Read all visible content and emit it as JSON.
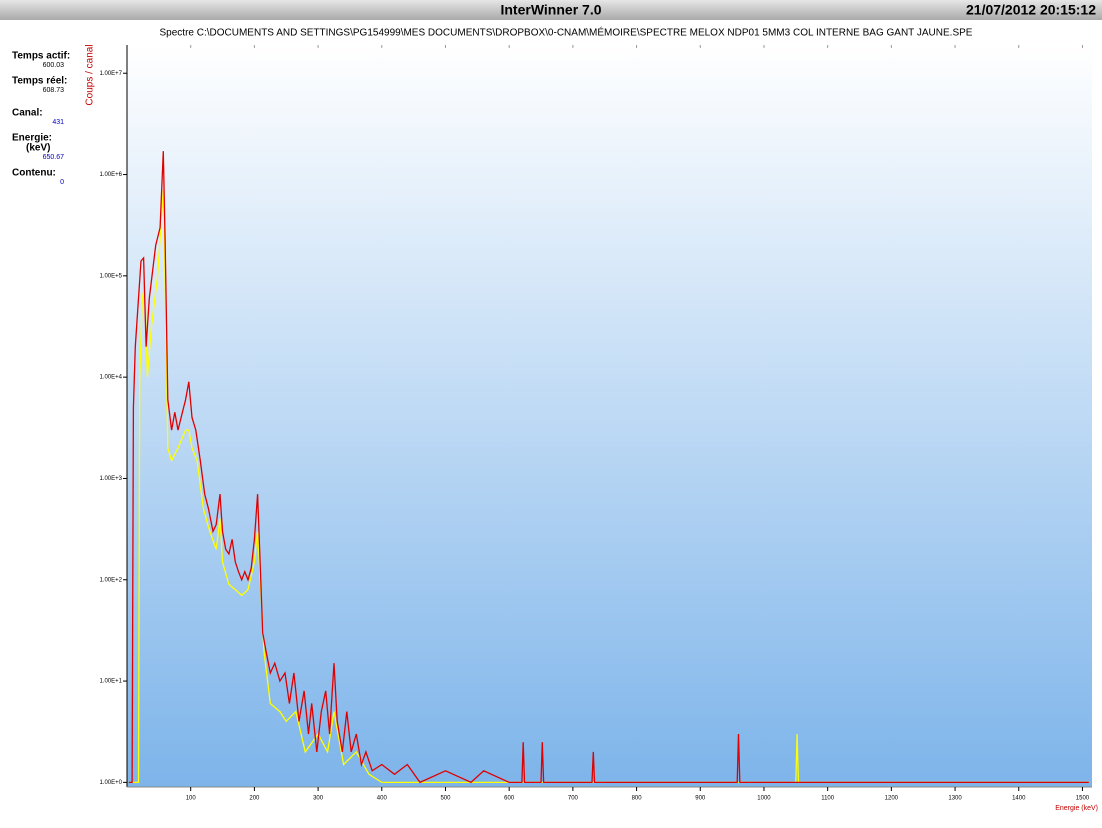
{
  "window_title": "InterWinner 7.0",
  "timestamp": "21/07/2012 20:15:12",
  "info": [
    {
      "label": "Temps actif:",
      "value": 600.03
    },
    {
      "label": "Temps réel:",
      "value": 608.73
    },
    {
      "label": "Canal:",
      "value": 431
    },
    {
      "label": "Energie:",
      "unit": "(keV)",
      "value": 650.67
    },
    {
      "label": "Contenu:",
      "value": 0
    }
  ],
  "chart_data": {
    "type": "line",
    "title": "Spectre C:\\DOCUMENTS AND SETTINGS\\PG154999\\MES DOCUMENTS\\DROPBOX\\0-CNAM\\MÉMOIRE\\SPECTRE MELOX NDP01 5MM3 COL INTERNE BAG GANT JAUNE.SPE",
    "x_label": "Energie (keV)",
    "y_label": "Coups / canal",
    "log_y": true,
    "xlim": [
      0,
      1515
    ],
    "ylim": [
      0.9,
      19000000
    ],
    "xticks": [
      100,
      200,
      300,
      400,
      500,
      600,
      700,
      800,
      900,
      1000,
      1100,
      1200,
      1300,
      1400,
      1500
    ],
    "yticks": [
      {
        "value": 1,
        "label": "1.00E+0"
      },
      {
        "value": 10,
        "label": "1.00E+1"
      },
      {
        "value": 100,
        "label": "1.00E+2"
      },
      {
        "value": 1000,
        "label": "1.00E+3"
      },
      {
        "value": 10000,
        "label": "1.00E+4"
      },
      {
        "value": 100000,
        "label": "1.00E+5"
      },
      {
        "value": 1000000,
        "label": "1.00E+6"
      },
      {
        "value": 10000000,
        "label": "1.00E+7"
      }
    ],
    "series": [
      {
        "color": "#ffff00",
        "x": [
          3,
          18,
          20,
          24,
          28,
          32,
          38,
          48,
          57,
          60,
          64,
          70,
          80,
          92,
          97,
          102,
          110,
          120,
          130,
          140,
          146,
          150,
          160,
          170,
          180,
          190,
          200,
          205,
          210,
          215,
          225,
          240,
          250,
          265,
          280,
          300,
          315,
          325,
          340,
          360,
          380,
          400,
          500,
          600,
          700,
          1050,
          1052,
          1054,
          1200,
          1510
        ],
        "values": [
          1,
          1,
          10000,
          60000,
          80000,
          10000,
          30000,
          100000,
          700000,
          80000,
          2000,
          1500,
          2000,
          3000,
          3000,
          2000,
          1500,
          500,
          300,
          200,
          400,
          150,
          90,
          80,
          70,
          80,
          150,
          300,
          80,
          20,
          6,
          5,
          4,
          5,
          2,
          3,
          2,
          5,
          1.5,
          2,
          1.2,
          1,
          1,
          1,
          1,
          1,
          3,
          1,
          1,
          1
        ]
      },
      {
        "color": "#e00000",
        "x": [
          3,
          8,
          10,
          13,
          18,
          22,
          26,
          30,
          35,
          45,
          52,
          57,
          60,
          64,
          70,
          75,
          80,
          85,
          92,
          97,
          102,
          108,
          115,
          122,
          128,
          135,
          140,
          146,
          150,
          155,
          160,
          165,
          170,
          175,
          180,
          185,
          190,
          195,
          200,
          205,
          209,
          213,
          218,
          225,
          232,
          240,
          248,
          255,
          262,
          270,
          278,
          285,
          290,
          298,
          305,
          312,
          318,
          325,
          330,
          338,
          345,
          352,
          360,
          368,
          375,
          385,
          400,
          420,
          440,
          460,
          500,
          540,
          560,
          600,
          620,
          622,
          624,
          650,
          652,
          654,
          730,
          732,
          734,
          958,
          960,
          962,
          1000,
          1100,
          1200,
          1300,
          1400,
          1510
        ],
        "values": [
          1,
          1,
          5000,
          20000,
          60000,
          140000,
          150000,
          20000,
          60000,
          200000,
          300000,
          1700000,
          200000,
          6000,
          3000,
          4500,
          3000,
          4000,
          6000,
          9000,
          4000,
          3000,
          1500,
          700,
          500,
          300,
          350,
          700,
          300,
          200,
          180,
          250,
          150,
          120,
          100,
          120,
          100,
          130,
          250,
          700,
          150,
          30,
          20,
          12,
          15,
          10,
          12,
          6,
          12,
          4,
          8,
          3,
          6,
          2,
          5,
          8,
          3,
          15,
          4,
          2,
          5,
          2,
          3,
          1.5,
          2,
          1.3,
          1.5,
          1.2,
          1.5,
          1,
          1.3,
          1,
          1.3,
          1,
          1,
          2.5,
          1,
          1,
          2.5,
          1,
          1,
          2,
          1,
          1,
          3,
          1,
          1,
          1,
          1,
          1,
          1,
          1
        ]
      }
    ]
  }
}
